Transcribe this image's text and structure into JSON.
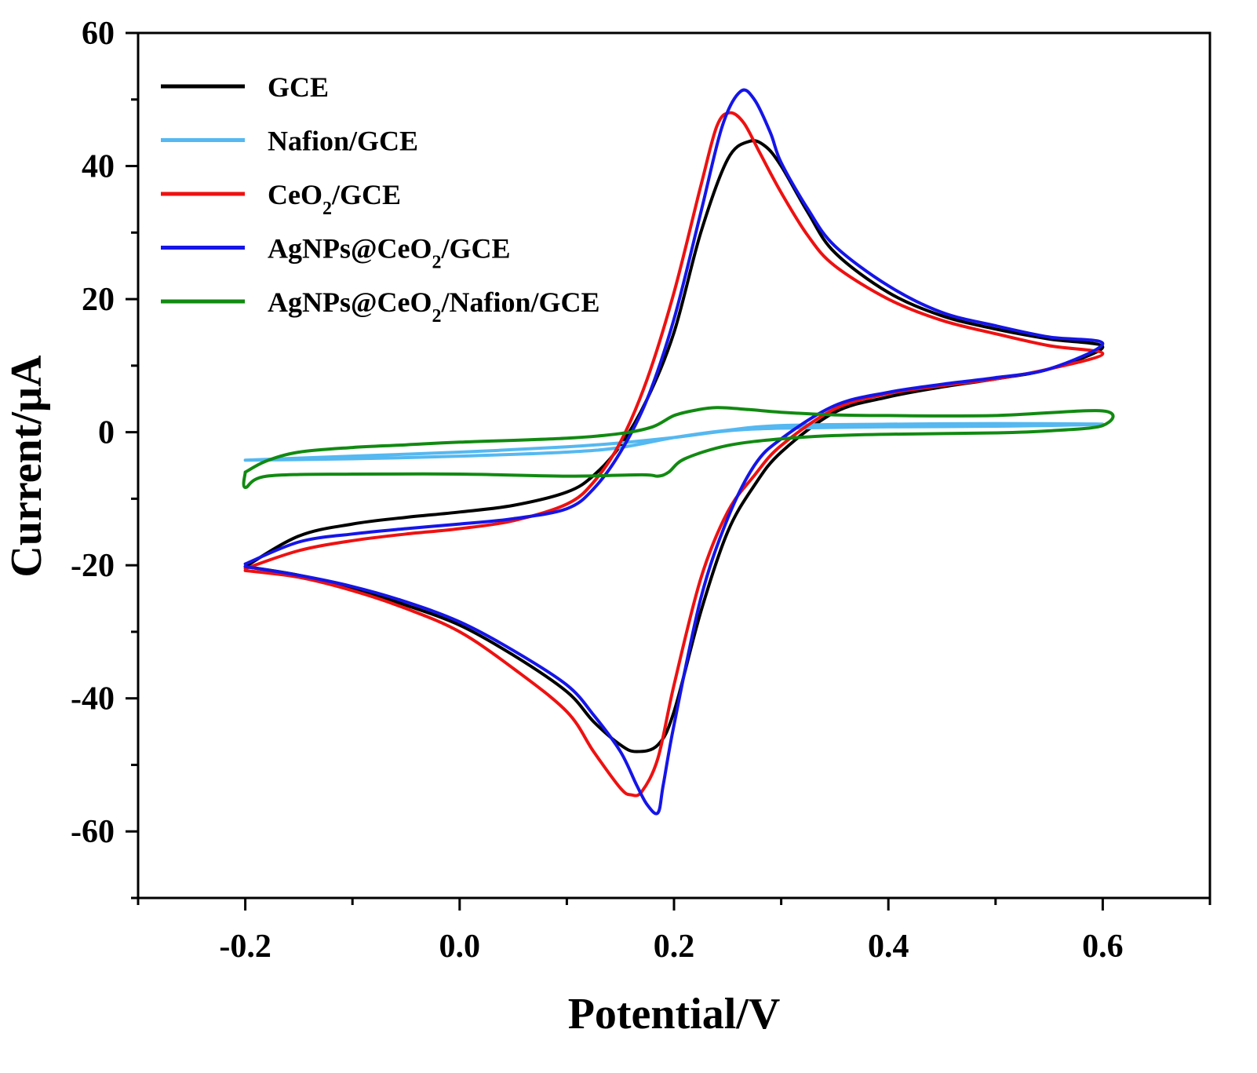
{
  "chart_data": {
    "type": "line",
    "title": "",
    "xlabel": "Potential/V",
    "ylabel": "Current/µA",
    "xlim": [
      -0.3,
      0.7
    ],
    "ylim": [
      -70,
      60
    ],
    "x_ticks": [
      -0.2,
      0.0,
      0.2,
      0.4,
      0.6
    ],
    "x_tick_labels": [
      "-0.2",
      "0.0",
      "0.2",
      "0.4",
      "0.6"
    ],
    "y_ticks": [
      -60,
      -40,
      -20,
      0,
      20,
      40,
      60
    ],
    "y_tick_labels": [
      "-60",
      "-40",
      "-20",
      "0",
      "20",
      "40",
      "60"
    ],
    "grid": false,
    "legend_position": "top-left",
    "series": [
      {
        "name": "GCE",
        "label_parts": [
          [
            "GCE",
            ""
          ]
        ],
        "color": "#000000",
        "forward": [
          [
            -0.2,
            -20.2
          ],
          [
            -0.15,
            -15.6
          ],
          [
            -0.1,
            -13.8
          ],
          [
            -0.05,
            -12.8
          ],
          [
            0.0,
            -12.0
          ],
          [
            0.05,
            -11.0
          ],
          [
            0.1,
            -9.0
          ],
          [
            0.125,
            -6.5
          ],
          [
            0.15,
            -2.0
          ],
          [
            0.175,
            5.0
          ],
          [
            0.2,
            15.0
          ],
          [
            0.225,
            30.0
          ],
          [
            0.25,
            41.0
          ],
          [
            0.27,
            43.7
          ],
          [
            0.285,
            43.0
          ],
          [
            0.3,
            40.0
          ],
          [
            0.325,
            33.0
          ],
          [
            0.35,
            27.0
          ],
          [
            0.4,
            21.0
          ],
          [
            0.45,
            17.5
          ],
          [
            0.5,
            15.5
          ],
          [
            0.55,
            14.0
          ],
          [
            0.6,
            12.8
          ]
        ],
        "reverse": [
          [
            0.6,
            12.8
          ],
          [
            0.55,
            9.5
          ],
          [
            0.5,
            8.0
          ],
          [
            0.45,
            6.8
          ],
          [
            0.4,
            5.3
          ],
          [
            0.35,
            3.0
          ],
          [
            0.3,
            -3.0
          ],
          [
            0.275,
            -8.0
          ],
          [
            0.25,
            -15.0
          ],
          [
            0.225,
            -27.0
          ],
          [
            0.2,
            -42.0
          ],
          [
            0.185,
            -47.0
          ],
          [
            0.165,
            -48.0
          ],
          [
            0.15,
            -47.0
          ],
          [
            0.125,
            -43.5
          ],
          [
            0.1,
            -39.0
          ],
          [
            0.05,
            -33.5
          ],
          [
            0.0,
            -29.0
          ],
          [
            -0.05,
            -26.0
          ],
          [
            -0.1,
            -23.5
          ],
          [
            -0.15,
            -21.5
          ],
          [
            -0.2,
            -20.2
          ]
        ]
      },
      {
        "name": "Nafion/GCE",
        "label_parts": [
          [
            "Nafion/GCE",
            ""
          ]
        ],
        "color": "#55b8f0",
        "forward": [
          [
            -0.2,
            -4.2
          ],
          [
            -0.1,
            -3.6
          ],
          [
            0.0,
            -3.0
          ],
          [
            0.1,
            -2.2
          ],
          [
            0.15,
            -1.6
          ],
          [
            0.2,
            -0.8
          ],
          [
            0.25,
            0.2
          ],
          [
            0.3,
            0.6
          ],
          [
            0.4,
            0.8
          ],
          [
            0.5,
            0.9
          ],
          [
            0.6,
            1.2
          ]
        ],
        "reverse": [
          [
            0.6,
            1.2
          ],
          [
            0.5,
            1.3
          ],
          [
            0.4,
            1.2
          ],
          [
            0.3,
            1.0
          ],
          [
            0.25,
            0.3
          ],
          [
            0.2,
            -0.8
          ],
          [
            0.15,
            -2.3
          ],
          [
            0.1,
            -3.0
          ],
          [
            0.0,
            -3.6
          ],
          [
            -0.1,
            -4.0
          ],
          [
            -0.2,
            -4.2
          ]
        ]
      },
      {
        "name": "CeO2/GCE",
        "label_parts": [
          [
            "CeO",
            ""
          ],
          [
            "2",
            "sub"
          ],
          [
            "/GCE",
            ""
          ]
        ],
        "color": "#ee1111",
        "forward": [
          [
            -0.2,
            -20.5
          ],
          [
            -0.15,
            -17.8
          ],
          [
            -0.1,
            -16.3
          ],
          [
            -0.05,
            -15.3
          ],
          [
            0.0,
            -14.5
          ],
          [
            0.05,
            -13.3
          ],
          [
            0.1,
            -10.8
          ],
          [
            0.125,
            -7.5
          ],
          [
            0.15,
            -1.5
          ],
          [
            0.175,
            8.0
          ],
          [
            0.2,
            21.0
          ],
          [
            0.225,
            37.0
          ],
          [
            0.24,
            46.0
          ],
          [
            0.252,
            48.0
          ],
          [
            0.265,
            46.5
          ],
          [
            0.28,
            42.0
          ],
          [
            0.3,
            36.0
          ],
          [
            0.325,
            29.5
          ],
          [
            0.35,
            25.0
          ],
          [
            0.4,
            20.0
          ],
          [
            0.45,
            16.8
          ],
          [
            0.5,
            14.8
          ],
          [
            0.55,
            13.0
          ],
          [
            0.6,
            11.8
          ]
        ],
        "reverse": [
          [
            0.6,
            11.8
          ],
          [
            0.55,
            9.5
          ],
          [
            0.5,
            8.0
          ],
          [
            0.45,
            7.0
          ],
          [
            0.4,
            5.8
          ],
          [
            0.35,
            3.5
          ],
          [
            0.3,
            -2.0
          ],
          [
            0.275,
            -6.5
          ],
          [
            0.25,
            -12.0
          ],
          [
            0.225,
            -22.0
          ],
          [
            0.2,
            -38.0
          ],
          [
            0.185,
            -49.0
          ],
          [
            0.17,
            -54.0
          ],
          [
            0.16,
            -54.5
          ],
          [
            0.15,
            -53.5
          ],
          [
            0.125,
            -48.0
          ],
          [
            0.1,
            -42.0
          ],
          [
            0.05,
            -35.5
          ],
          [
            0.0,
            -30.0
          ],
          [
            -0.05,
            -26.5
          ],
          [
            -0.1,
            -23.8
          ],
          [
            -0.15,
            -21.8
          ],
          [
            -0.2,
            -20.8
          ]
        ]
      },
      {
        "name": "AgNPs@CeO2/GCE",
        "label_parts": [
          [
            "AgNPs@CeO",
            ""
          ],
          [
            "2",
            "sub"
          ],
          [
            "/GCE",
            ""
          ]
        ],
        "color": "#1515e8",
        "forward": [
          [
            -0.2,
            -19.8
          ],
          [
            -0.15,
            -16.5
          ],
          [
            -0.1,
            -15.3
          ],
          [
            -0.05,
            -14.5
          ],
          [
            0.0,
            -13.8
          ],
          [
            0.05,
            -13.0
          ],
          [
            0.1,
            -11.5
          ],
          [
            0.125,
            -8.5
          ],
          [
            0.15,
            -3.0
          ],
          [
            0.175,
            5.0
          ],
          [
            0.2,
            17.0
          ],
          [
            0.225,
            33.0
          ],
          [
            0.245,
            46.0
          ],
          [
            0.262,
            51.2
          ],
          [
            0.275,
            50.0
          ],
          [
            0.29,
            45.0
          ],
          [
            0.3,
            40.5
          ],
          [
            0.325,
            33.5
          ],
          [
            0.35,
            28.0
          ],
          [
            0.4,
            22.0
          ],
          [
            0.45,
            18.0
          ],
          [
            0.5,
            16.0
          ],
          [
            0.55,
            14.3
          ],
          [
            0.6,
            13.3
          ]
        ],
        "reverse": [
          [
            0.6,
            13.3
          ],
          [
            0.55,
            9.5
          ],
          [
            0.5,
            8.2
          ],
          [
            0.45,
            7.2
          ],
          [
            0.4,
            6.0
          ],
          [
            0.35,
            4.0
          ],
          [
            0.3,
            -1.0
          ],
          [
            0.275,
            -5.0
          ],
          [
            0.25,
            -13.0
          ],
          [
            0.225,
            -25.0
          ],
          [
            0.2,
            -44.0
          ],
          [
            0.19,
            -53.0
          ],
          [
            0.185,
            -57.2
          ],
          [
            0.175,
            -56.0
          ],
          [
            0.165,
            -53.0
          ],
          [
            0.15,
            -48.0
          ],
          [
            0.125,
            -42.5
          ],
          [
            0.1,
            -38.0
          ],
          [
            0.05,
            -32.8
          ],
          [
            0.0,
            -28.5
          ],
          [
            -0.05,
            -25.5
          ],
          [
            -0.1,
            -23.2
          ],
          [
            -0.15,
            -21.5
          ],
          [
            -0.2,
            -20.2
          ]
        ]
      },
      {
        "name": "AgNPs@CeO2/Nafion/GCE",
        "label_parts": [
          [
            "AgNPs@CeO",
            ""
          ],
          [
            "2",
            "sub"
          ],
          [
            "/Nafion/GCE",
            ""
          ]
        ],
        "color": "#118a11",
        "forward": [
          [
            -0.2,
            -6.0
          ],
          [
            -0.18,
            -4.3
          ],
          [
            -0.15,
            -3.0
          ],
          [
            -0.1,
            -2.3
          ],
          [
            -0.05,
            -1.9
          ],
          [
            0.0,
            -1.5
          ],
          [
            0.1,
            -0.9
          ],
          [
            0.15,
            -0.2
          ],
          [
            0.18,
            0.8
          ],
          [
            0.2,
            2.5
          ],
          [
            0.22,
            3.3
          ],
          [
            0.24,
            3.7
          ],
          [
            0.27,
            3.4
          ],
          [
            0.3,
            3.0
          ],
          [
            0.35,
            2.6
          ],
          [
            0.4,
            2.5
          ],
          [
            0.5,
            2.5
          ],
          [
            0.6,
            3.2
          ]
        ],
        "reverse": [
          [
            0.6,
            3.2
          ],
          [
            0.6,
            1.0
          ],
          [
            0.55,
            0.2
          ],
          [
            0.5,
            -0.1
          ],
          [
            0.4,
            -0.3
          ],
          [
            0.35,
            -0.5
          ],
          [
            0.3,
            -1.0
          ],
          [
            0.25,
            -2.0
          ],
          [
            0.21,
            -4.0
          ],
          [
            0.195,
            -6.0
          ],
          [
            0.185,
            -6.6
          ],
          [
            0.17,
            -6.4
          ],
          [
            0.1,
            -6.6
          ],
          [
            0.0,
            -6.3
          ],
          [
            -0.1,
            -6.3
          ],
          [
            -0.18,
            -6.6
          ],
          [
            -0.2,
            -8.3
          ],
          [
            -0.2,
            -6.0
          ]
        ]
      }
    ]
  }
}
